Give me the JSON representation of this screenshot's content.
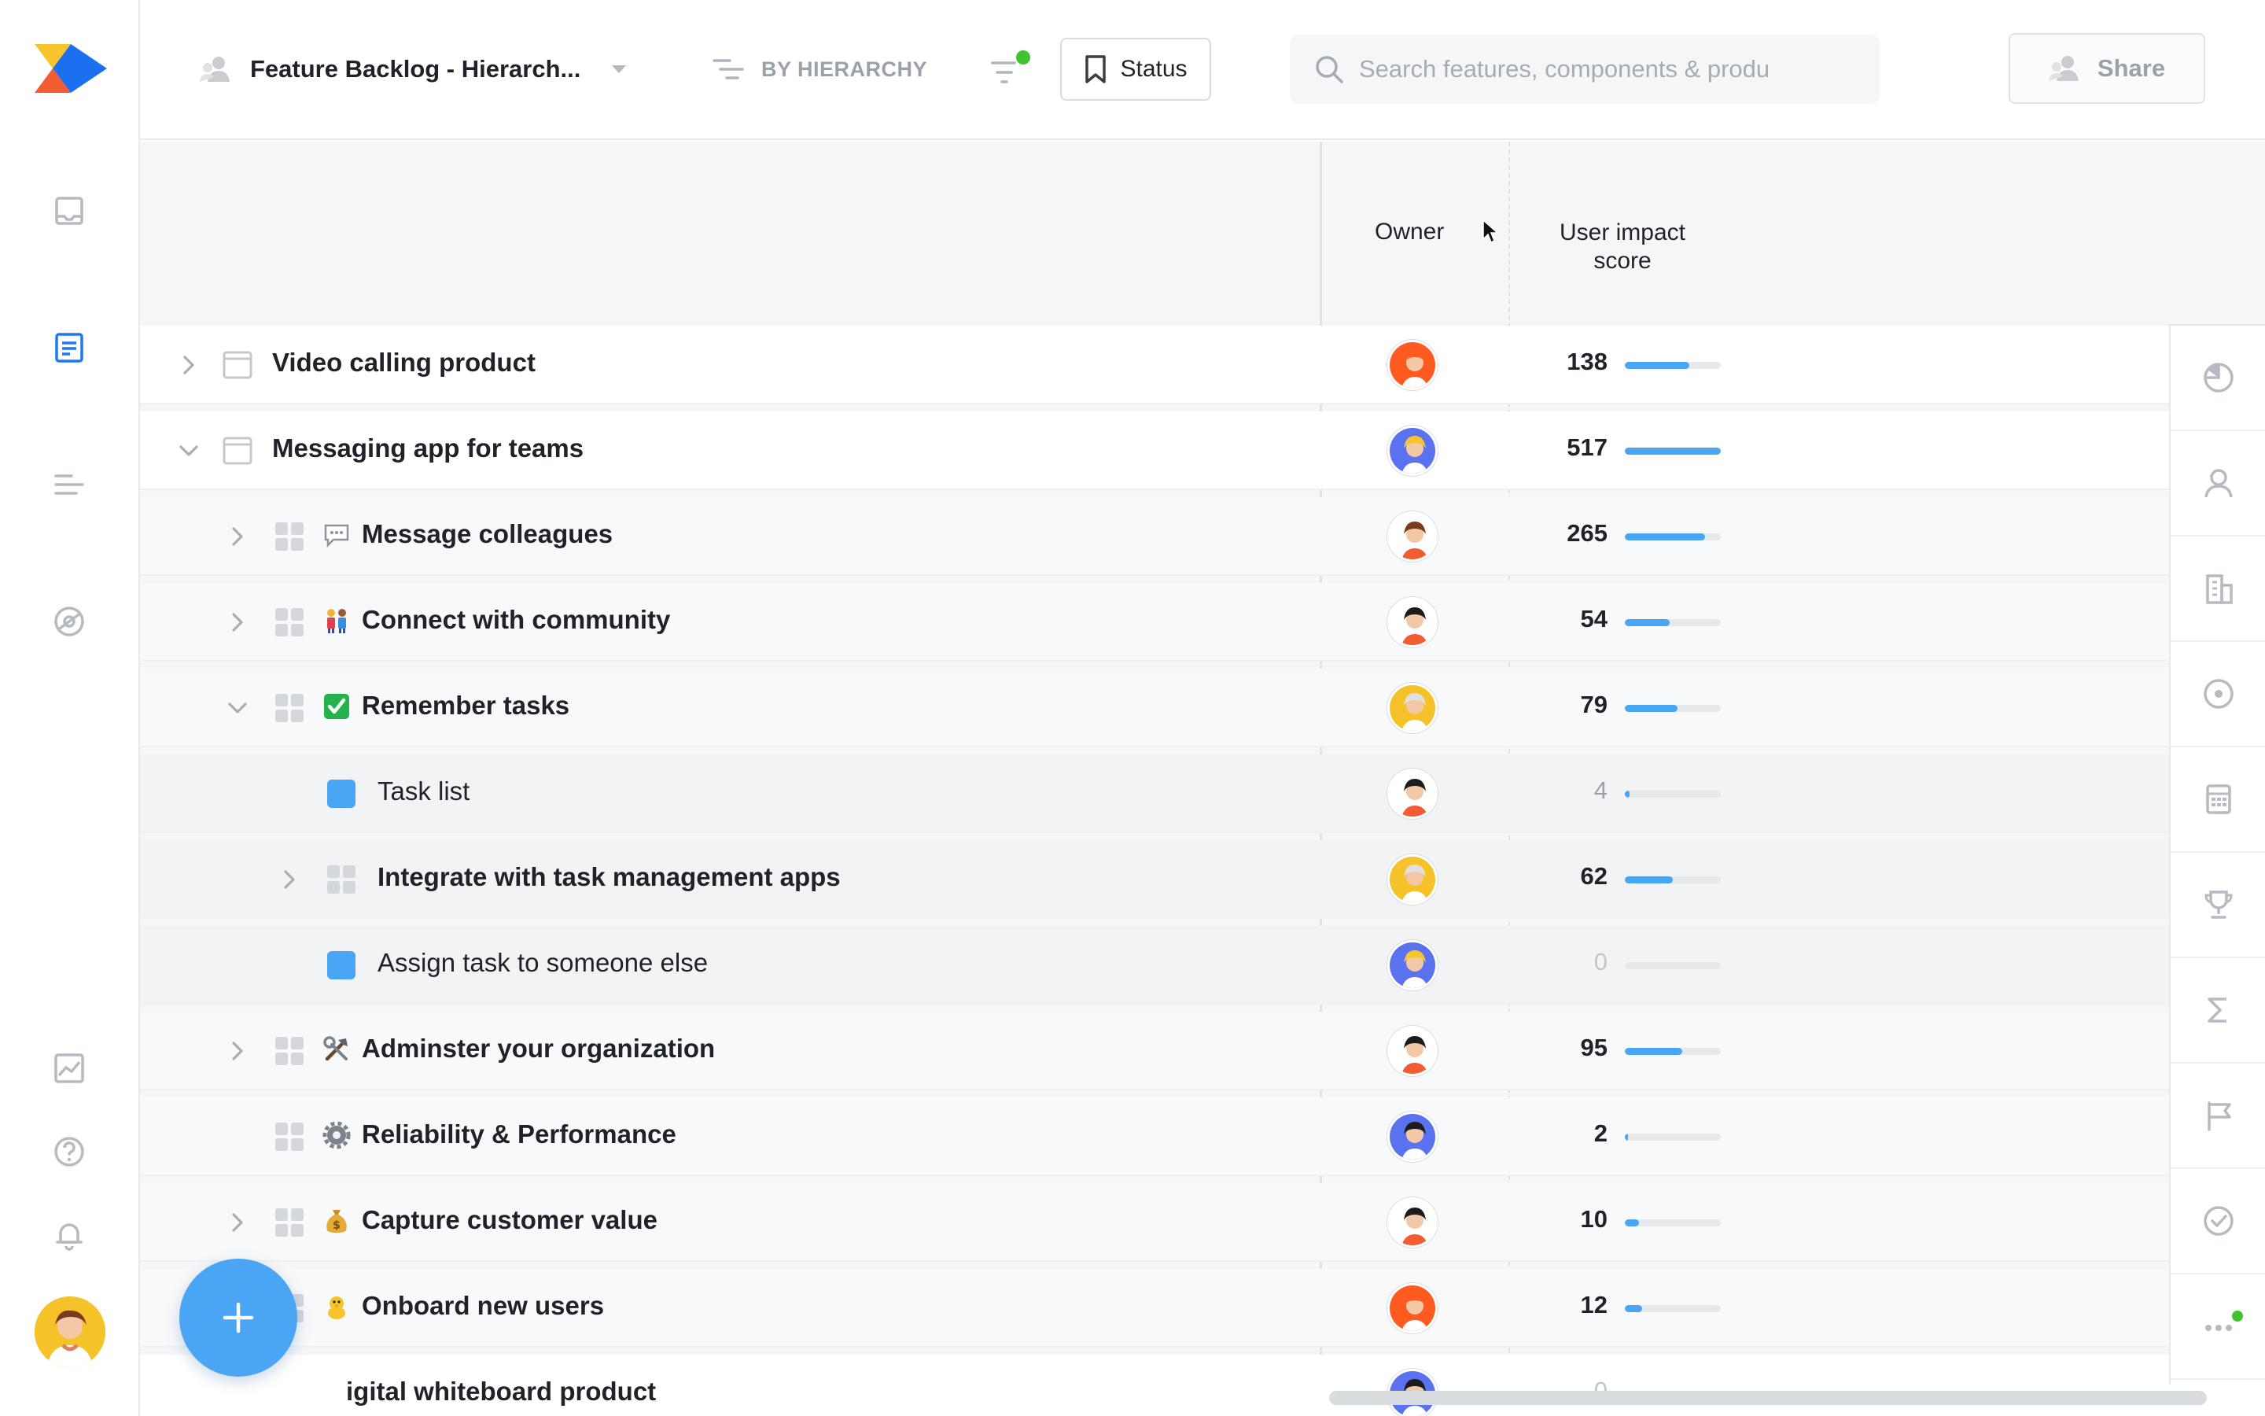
{
  "topbar": {
    "board_title": "Feature Backlog - Hierarch...",
    "view_label": "BY HIERARCHY",
    "status_label": "Status",
    "search_placeholder": "Search features, components & produ",
    "share_label": "Share"
  },
  "columns": {
    "owner": "Owner",
    "impact_line1": "User impact",
    "impact_line2": "score"
  },
  "colors": {
    "accent": "#4aa5f4",
    "green_dot": "#3fc42f"
  },
  "rows": [
    {
      "label": "Video calling product",
      "score": "138",
      "pct": 0.67,
      "bold": true,
      "level": 0,
      "expand": "collapsed",
      "type": "product",
      "emoji": "",
      "owner": "orange"
    },
    {
      "label": "Messaging app for teams",
      "score": "517",
      "pct": 1.0,
      "bold": true,
      "level": 0,
      "expand": "expanded",
      "type": "product",
      "emoji": "",
      "owner": "blue"
    },
    {
      "label": "Message colleagues",
      "score": "265",
      "pct": 0.84,
      "bold": true,
      "level": 1,
      "expand": "collapsed",
      "type": "component",
      "emoji": "speech-balloon",
      "owner": "red"
    },
    {
      "label": "Connect with community",
      "score": "54",
      "pct": 0.47,
      "bold": true,
      "level": 1,
      "expand": "collapsed",
      "type": "component",
      "emoji": "people",
      "owner": "black"
    },
    {
      "label": "Remember tasks",
      "score": "79",
      "pct": 0.55,
      "bold": true,
      "level": 1,
      "expand": "expanded",
      "type": "component",
      "emoji": "check-box",
      "owner": "yellow"
    },
    {
      "label": "Task list",
      "score": "4",
      "pct": 0.05,
      "bold": false,
      "level": 2,
      "expand": "none",
      "type": "feature",
      "emoji": "",
      "owner": "black"
    },
    {
      "label": "Integrate with task management apps",
      "score": "62",
      "pct": 0.5,
      "bold": true,
      "level": 2,
      "expand": "collapsed",
      "type": "component",
      "emoji": "",
      "owner": "yellow"
    },
    {
      "label": "Assign task to someone else",
      "score": "0",
      "pct": 0,
      "bold": false,
      "level": 2,
      "expand": "none",
      "type": "feature",
      "emoji": "",
      "owner": "blue"
    },
    {
      "label": "Adminster your organization",
      "score": "95",
      "pct": 0.6,
      "bold": true,
      "level": 1,
      "expand": "collapsed",
      "type": "component",
      "emoji": "tools",
      "owner": "black"
    },
    {
      "label": "Reliability & Performance",
      "score": "2",
      "pct": 0.03,
      "bold": true,
      "level": 1,
      "expand": "none",
      "type": "component",
      "emoji": "gear",
      "owner": "navy"
    },
    {
      "label": "Capture customer value",
      "score": "10",
      "pct": 0.15,
      "bold": true,
      "level": 1,
      "expand": "collapsed",
      "type": "component",
      "emoji": "money-bag",
      "owner": "black"
    },
    {
      "label": "Onboard new users",
      "score": "12",
      "pct": 0.18,
      "bold": true,
      "level": 1,
      "expand": "collapsed",
      "type": "component",
      "emoji": "chick",
      "owner": "orange"
    },
    {
      "label": "igital whiteboard product",
      "score": "0",
      "pct": 0,
      "bold": true,
      "level": 0,
      "expand": "none",
      "type": "product",
      "emoji": "",
      "owner": "navy"
    }
  ],
  "right_rail": [
    "pie-icon",
    "person-icon",
    "building-icon",
    "target-icon",
    "calculator-icon",
    "trophy-icon",
    "sigma-icon",
    "flag-icon",
    "check-circle-icon",
    "more-icon"
  ],
  "left_rail": [
    "inbox-icon",
    "notes-icon",
    "roadmap-icon",
    "insights-icon",
    "analytics-icon",
    "help-icon",
    "bell-icon"
  ]
}
